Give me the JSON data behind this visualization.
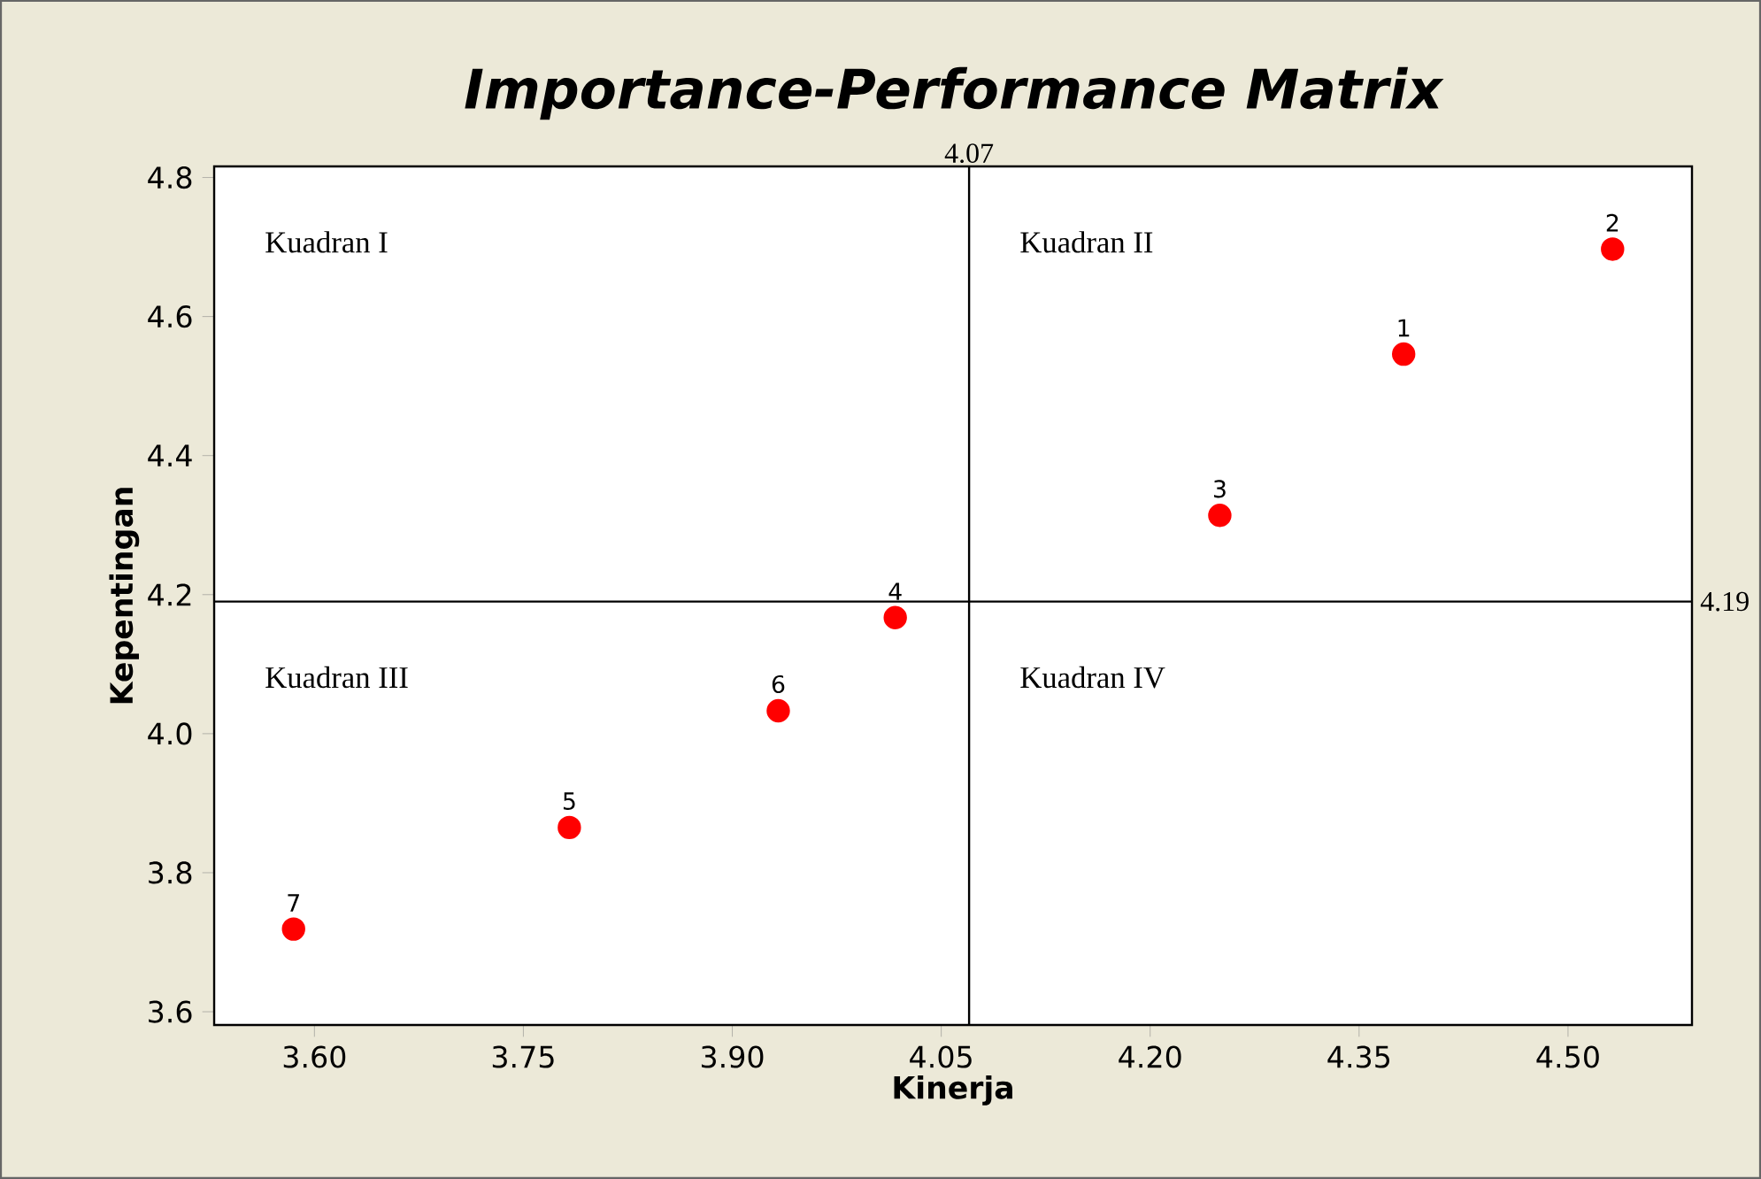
{
  "chart_data": {
    "type": "scatter",
    "title": "Importance-Performance Matrix",
    "xlabel": "Kinerja",
    "ylabel": "Kepentingan",
    "x": [
      4.382,
      4.532,
      4.25,
      4.017,
      3.783,
      3.933,
      3.585
    ],
    "values": [
      4.546,
      4.697,
      4.314,
      4.167,
      3.865,
      4.033,
      3.719
    ],
    "color": "#ff0000",
    "marker": "circle",
    "xlim": [
      3.528,
      4.589
    ],
    "ylim": [
      3.581,
      4.816
    ],
    "xticks": [
      {
        "value": 3.6,
        "label": "3.60"
      },
      3.75,
      {
        "value": 3.9,
        "label": "3.90"
      },
      4.05,
      {
        "value": 4.2,
        "label": "4.20"
      },
      4.35,
      {
        "value": 4.5,
        "label": "4.50"
      }
    ],
    "yticks": [
      3.6,
      3.8,
      {
        "value": 4.0,
        "label": "4.0"
      },
      4.2,
      4.4,
      4.6,
      4.8
    ],
    "ref_lines": [
      {
        "axis": "x",
        "value": 4.07,
        "label": "4.07"
      },
      {
        "axis": "y",
        "value": 4.19,
        "label": "4.19"
      }
    ],
    "annotations": [
      "Kuadran I",
      "Kuadran II",
      "Kuadran III",
      "Kuadran IV",
      {
        "text": "1",
        "x": 4.382,
        "y": 4.546
      },
      {
        "text": "2",
        "x": 4.532,
        "y": 4.697
      },
      {
        "text": "3",
        "x": 4.25,
        "y": 4.314
      },
      {
        "text": "4",
        "x": 4.017,
        "y": 4.167
      },
      {
        "text": "5",
        "x": 3.783,
        "y": 3.865
      },
      {
        "text": "6",
        "x": 3.933,
        "y": 4.033
      },
      {
        "text": "7",
        "x": 3.585,
        "y": 3.719
      }
    ],
    "grid": false
  }
}
